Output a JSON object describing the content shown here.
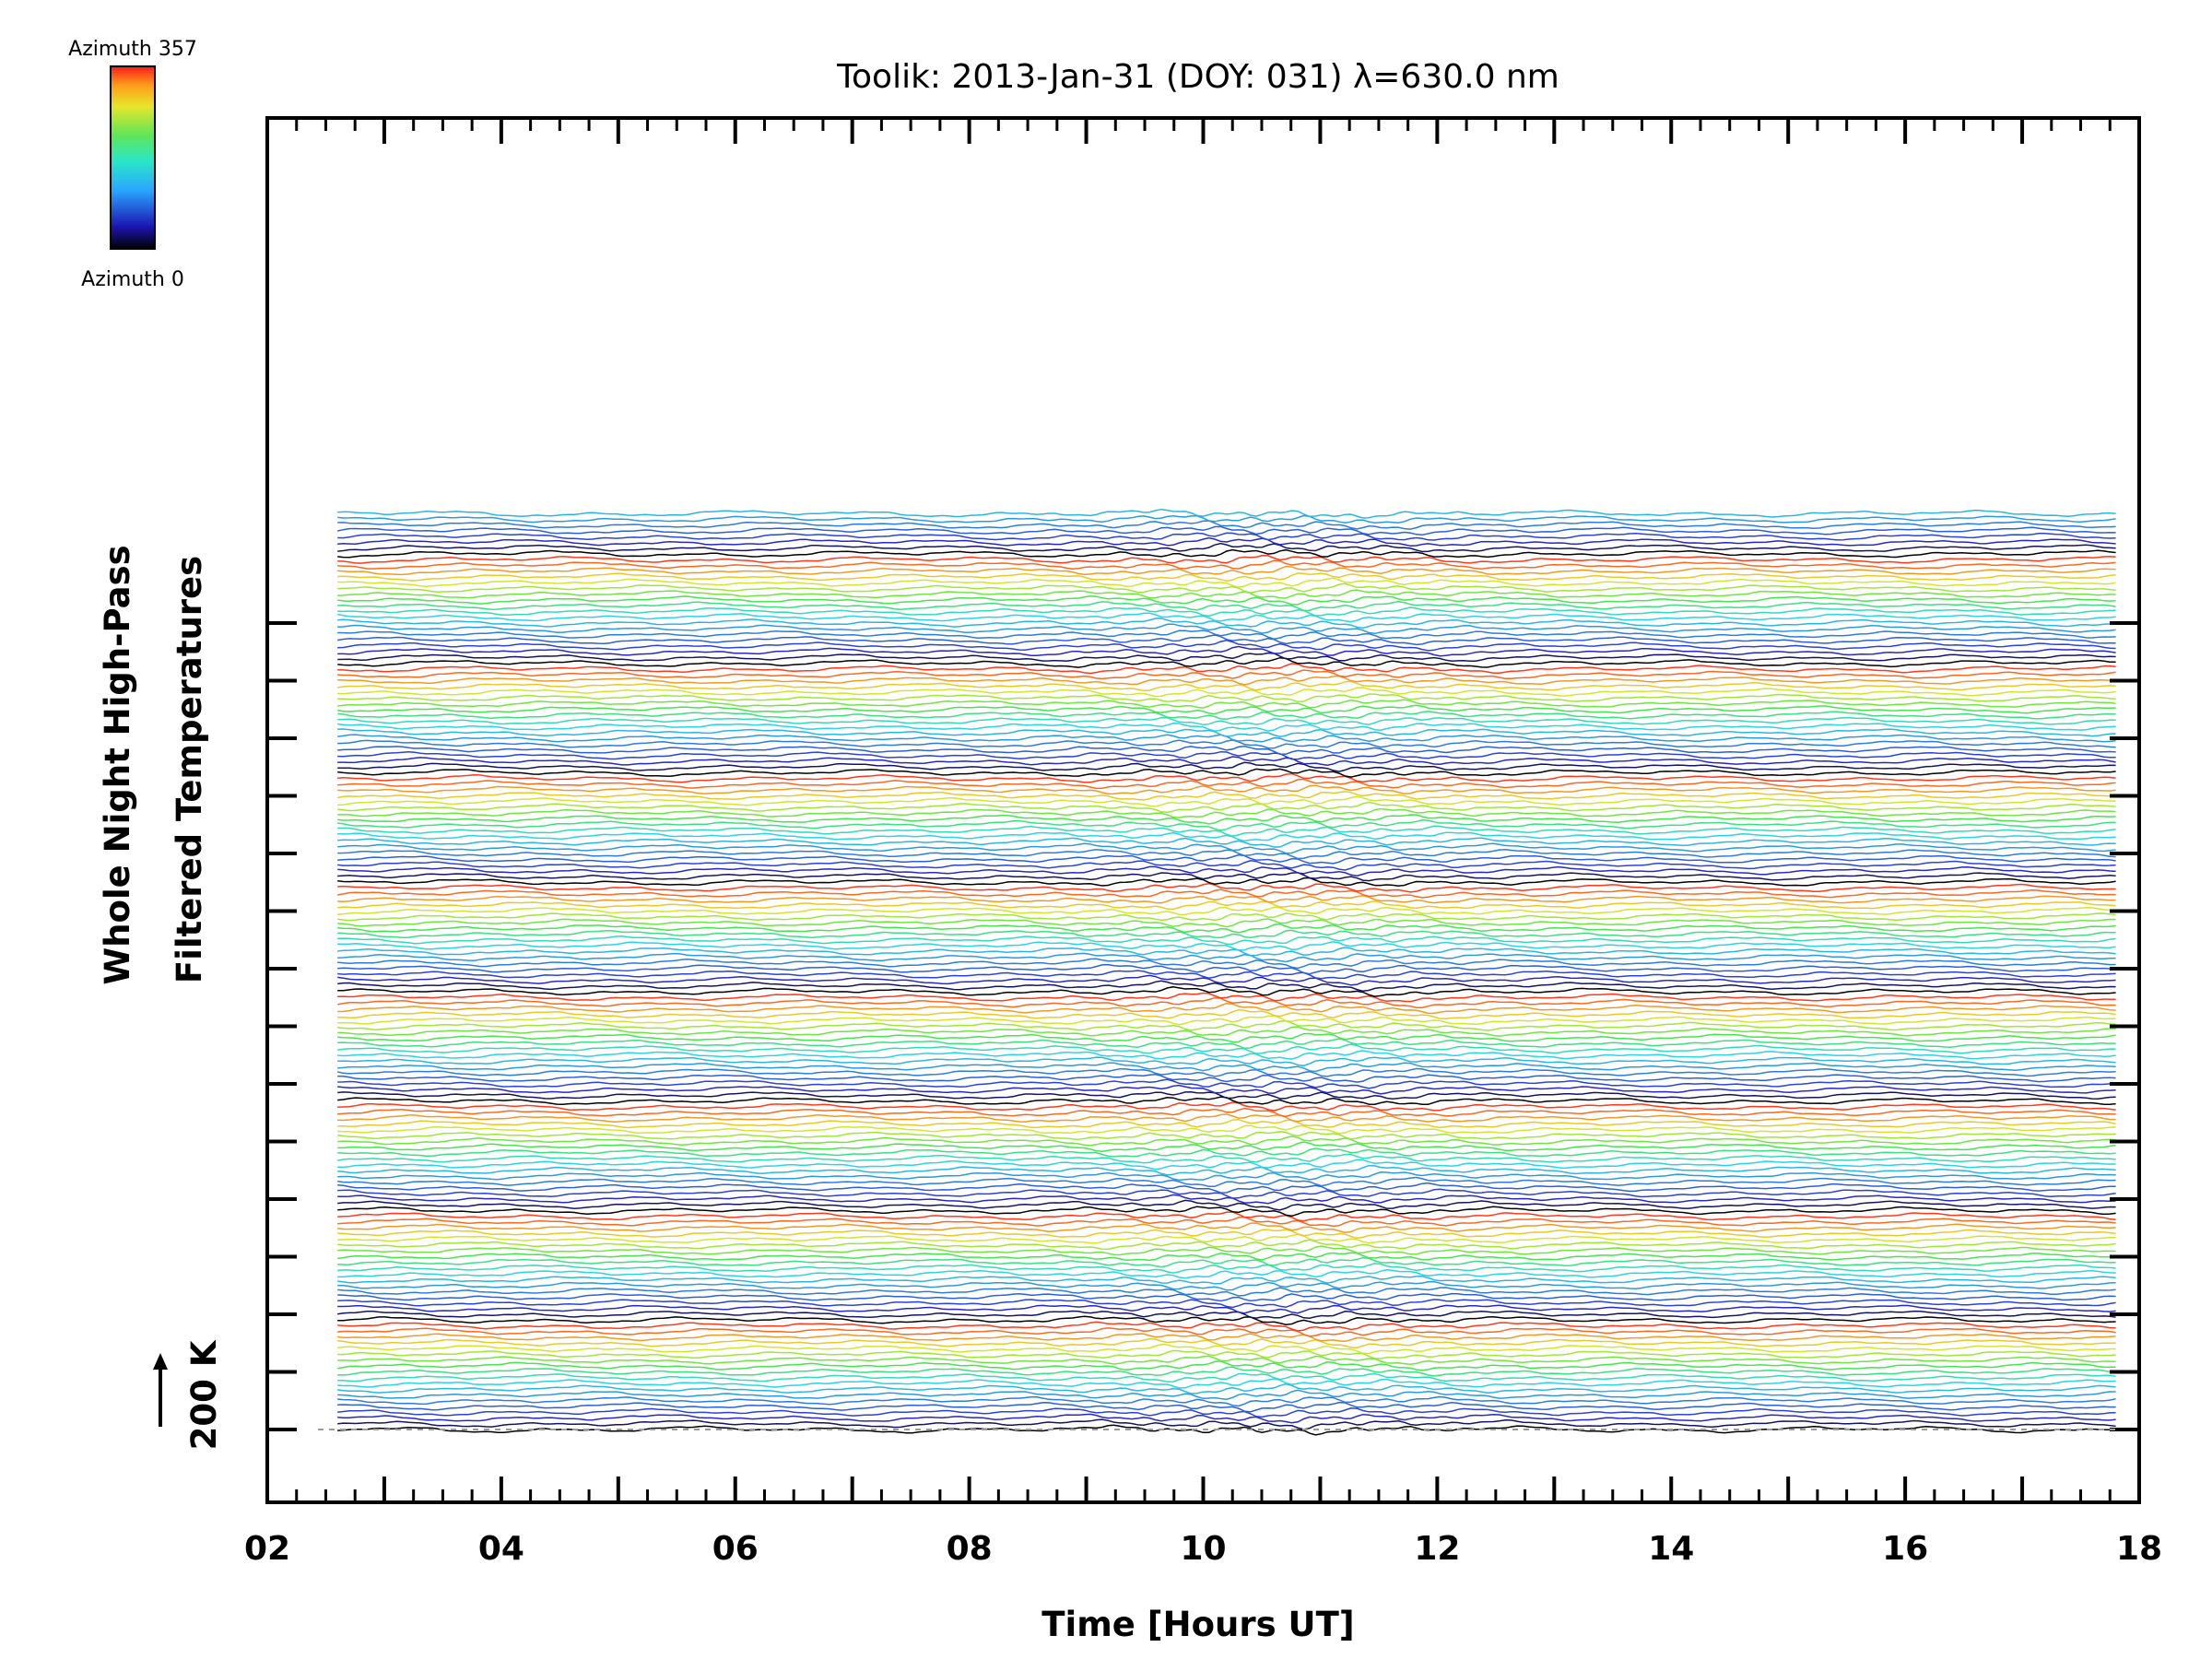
{
  "chart_data": {
    "type": "line",
    "title": "Toolik: 2013-Jan-31 (DOY: 031) λ=630.0 nm",
    "xlabel": "Time [Hours UT]",
    "ylabel_line1": "Whole Night High-Pass",
    "ylabel_line2": "Filtered Temperatures",
    "scale_label": "200 K",
    "xlim": [
      2,
      18
    ],
    "x_range": [
      2.6,
      17.8
    ],
    "x_tick_labels": [
      "02",
      "04",
      "06",
      "08",
      "10",
      "12",
      "14",
      "16",
      "18"
    ],
    "colorbar": {
      "top_label": "Azimuth 357",
      "bottom_label": "Azimuth 0"
    },
    "series_count": 160,
    "series_offset_K": 20,
    "baseline_style": "dashed",
    "grid": false,
    "colors": {
      "line_dark": "#000000",
      "line_blue": "#2b2bd6",
      "line_cyan": "#2ad6e6",
      "line_green": "#46e646",
      "line_yellow": "#e6e62a",
      "line_red": "#ff3a1a"
    }
  }
}
